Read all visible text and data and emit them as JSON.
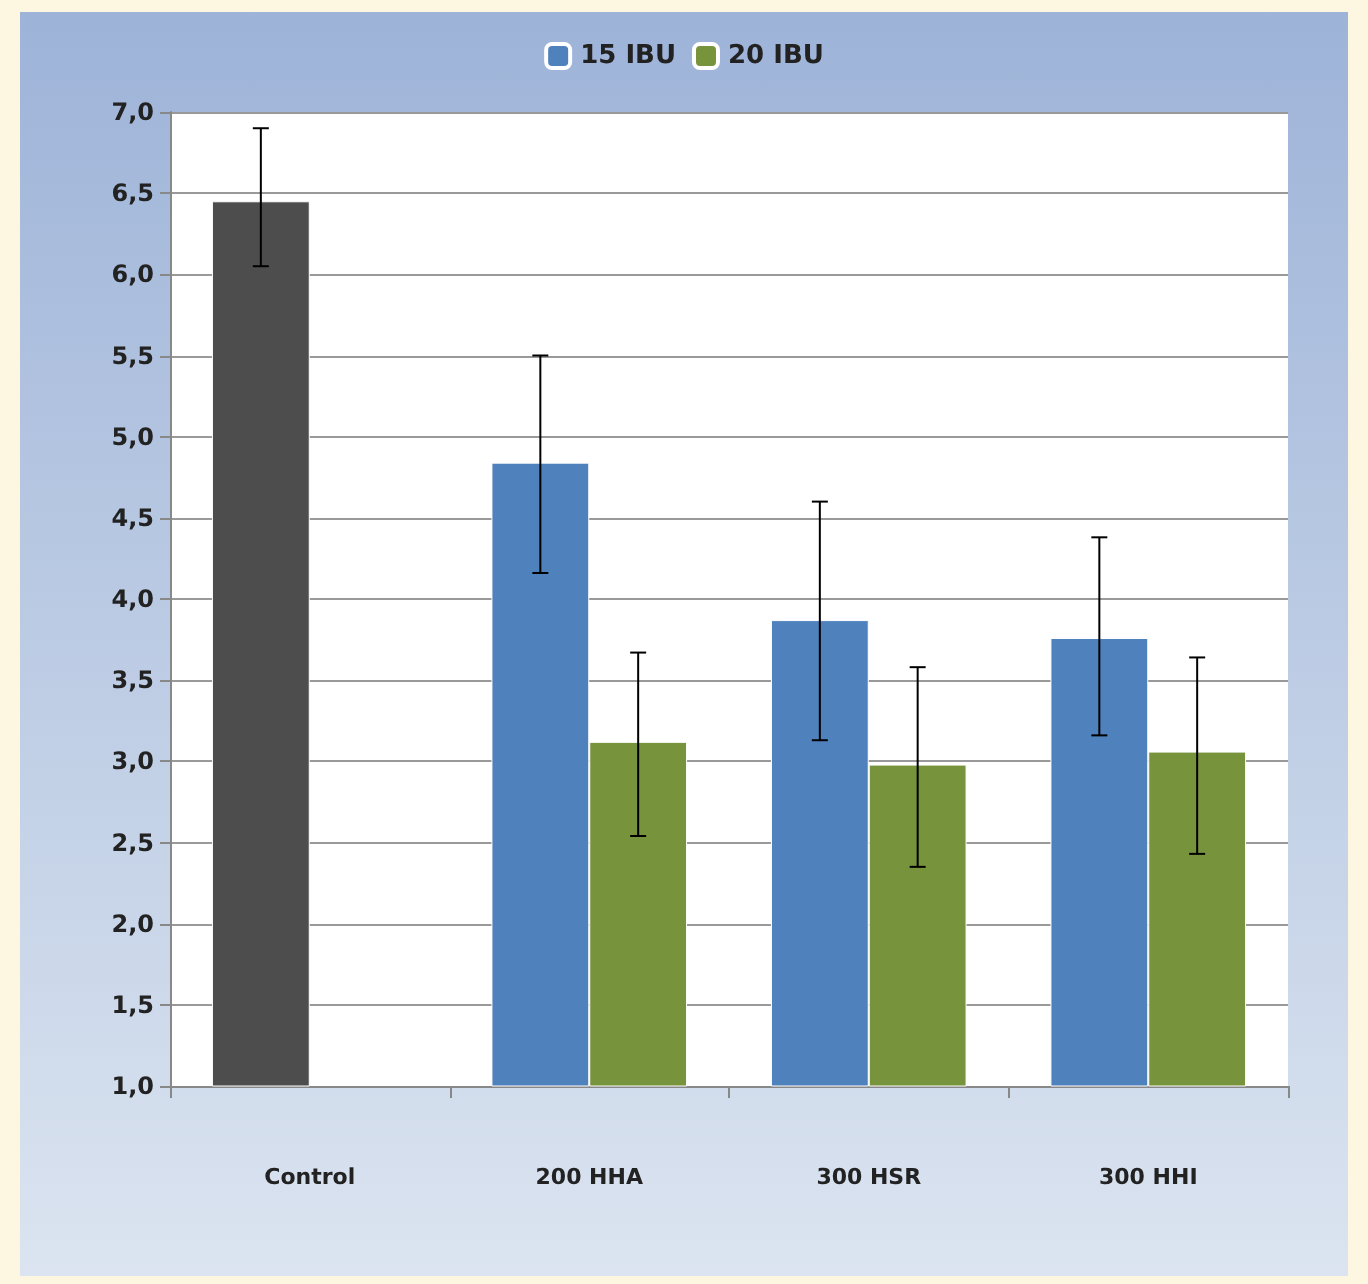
{
  "chart_data": {
    "type": "bar",
    "categories": [
      "Control",
      "200 HHA",
      "300 HSR",
      "300 HHI"
    ],
    "series": [
      {
        "name": "15 IBU",
        "color": "#4f81bd",
        "colors": [
          "#4d4d4d",
          "#4f81bd",
          "#4f81bd",
          "#4f81bd"
        ],
        "values": [
          6.45,
          4.84,
          3.87,
          3.76
        ],
        "errors": [
          [
            6.05,
            6.9
          ],
          [
            4.16,
            5.5
          ],
          [
            3.13,
            4.6
          ],
          [
            3.16,
            4.38
          ]
        ]
      },
      {
        "name": "20 IBU",
        "color": "#77933c",
        "values": [
          null,
          3.12,
          2.98,
          3.06
        ],
        "errors": [
          null,
          [
            2.54,
            3.67
          ],
          [
            2.35,
            3.58
          ],
          [
            2.43,
            3.64
          ]
        ]
      }
    ],
    "ylim": [
      1,
      7
    ],
    "yticks": [
      {
        "value": 1,
        "label": "1,0"
      },
      {
        "value": 1.5,
        "label": "1,5"
      },
      {
        "value": 2,
        "label": "2,0"
      },
      {
        "value": 2.5,
        "label": "2,5"
      },
      {
        "value": 3,
        "label": "3,0"
      },
      {
        "value": 3.5,
        "label": "3,5"
      },
      {
        "value": 4,
        "label": "4,0"
      },
      {
        "value": 4.5,
        "label": "4,5"
      },
      {
        "value": 5,
        "label": "5,0"
      },
      {
        "value": 5.5,
        "label": "5,5"
      },
      {
        "value": 6,
        "label": "6,0"
      },
      {
        "value": 6.5,
        "label": "6,5"
      },
      {
        "value": 7,
        "label": "7,0"
      }
    ],
    "grid": true,
    "legend": "top"
  }
}
